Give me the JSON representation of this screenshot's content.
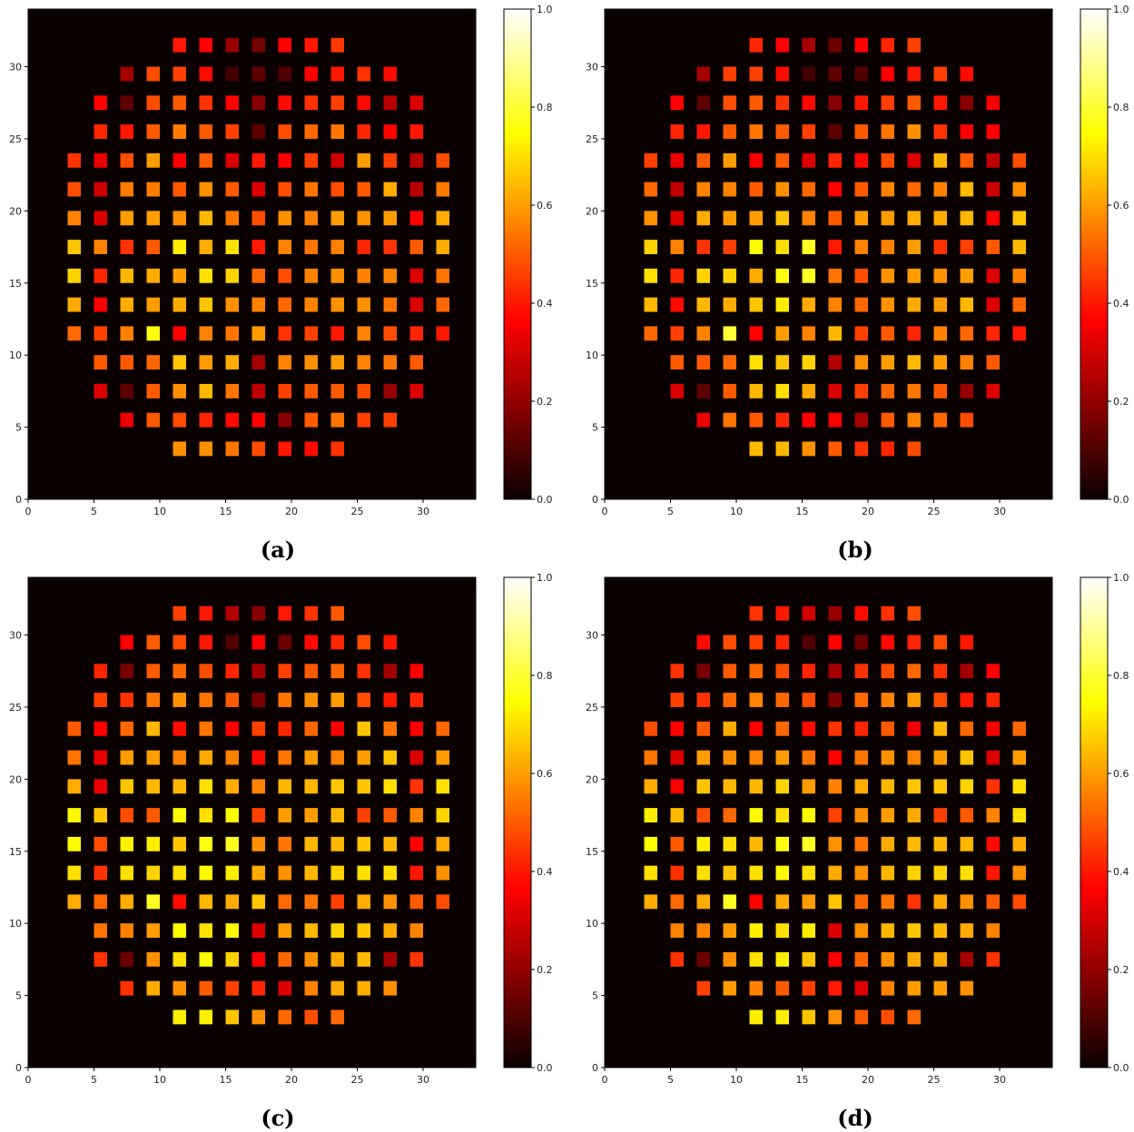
{
  "chart_data": [
    {
      "caption": "(a)",
      "type": "heatmap",
      "colormap": "hot",
      "x_range": [
        0,
        34
      ],
      "y_range": [
        0,
        34
      ],
      "x_ticks": [
        0,
        5,
        10,
        15,
        20,
        25,
        30
      ],
      "y_ticks": [
        0,
        5,
        10,
        15,
        20,
        25,
        30
      ],
      "colorbar": {
        "range": [
          0,
          1
        ],
        "ticks": [
          "0.0",
          "0.2",
          "0.4",
          "0.6",
          "0.8",
          "1.0"
        ]
      },
      "cell_x": [
        3.5,
        5.5,
        7.5,
        9.5,
        11.5,
        13.5,
        15.5,
        17.5,
        19.5,
        21.5,
        23.5,
        25.5,
        27.5,
        29.5,
        31.5
      ],
      "cell_y": [
        31.5,
        29.5,
        27.5,
        25.5,
        23.5,
        21.5,
        19.5,
        17.5,
        15.5,
        13.5,
        11.5,
        9.5,
        7.5,
        5.5,
        3.5
      ],
      "grid": [
        [
          null,
          null,
          null,
          null,
          0.4,
          0.36,
          0.2,
          0.15,
          0.36,
          0.4,
          0.45,
          null,
          null,
          null,
          null
        ],
        [
          null,
          null,
          0.22,
          0.48,
          0.46,
          0.38,
          0.08,
          0.12,
          0.1,
          0.36,
          0.4,
          0.44,
          0.38,
          null,
          null
        ],
        [
          null,
          0.36,
          0.12,
          0.48,
          0.5,
          0.44,
          0.36,
          0.18,
          0.38,
          0.44,
          0.46,
          0.38,
          0.25,
          0.3,
          null
        ],
        [
          null,
          0.42,
          0.4,
          0.5,
          0.55,
          0.5,
          0.46,
          0.12,
          0.48,
          0.52,
          0.54,
          0.42,
          0.36,
          0.4,
          null
        ],
        [
          0.44,
          0.32,
          0.48,
          0.6,
          0.35,
          0.5,
          0.3,
          0.4,
          0.36,
          0.46,
          0.28,
          0.6,
          0.46,
          0.25,
          0.48
        ],
        [
          0.48,
          0.28,
          0.55,
          0.55,
          0.5,
          0.58,
          0.5,
          0.3,
          0.48,
          0.54,
          0.48,
          0.5,
          0.62,
          0.25,
          0.55
        ],
        [
          0.56,
          0.3,
          0.6,
          0.6,
          0.58,
          0.64,
          0.54,
          0.48,
          0.58,
          0.56,
          0.6,
          0.58,
          0.6,
          0.36,
          0.62
        ],
        [
          0.66,
          0.56,
          0.44,
          0.5,
          0.72,
          0.62,
          0.7,
          0.4,
          0.56,
          0.54,
          0.56,
          0.42,
          0.44,
          0.5,
          0.62
        ],
        [
          0.68,
          0.42,
          0.64,
          0.62,
          0.6,
          0.7,
          0.68,
          0.52,
          0.48,
          0.56,
          0.58,
          0.56,
          0.56,
          0.3,
          0.54
        ],
        [
          0.62,
          0.36,
          0.62,
          0.6,
          0.62,
          0.66,
          0.58,
          0.56,
          0.52,
          0.56,
          0.58,
          0.58,
          0.54,
          0.3,
          0.52
        ],
        [
          0.52,
          0.46,
          0.56,
          0.76,
          0.36,
          0.56,
          0.54,
          0.6,
          0.44,
          0.46,
          0.4,
          0.56,
          0.48,
          0.42,
          0.4
        ],
        [
          null,
          0.5,
          0.5,
          0.52,
          0.66,
          0.6,
          0.62,
          0.22,
          0.56,
          0.58,
          0.6,
          0.56,
          0.54,
          0.5,
          null
        ],
        [
          null,
          0.3,
          0.12,
          0.5,
          0.58,
          0.64,
          0.54,
          0.26,
          0.46,
          0.5,
          0.5,
          0.48,
          0.2,
          0.3,
          null
        ],
        [
          null,
          null,
          0.32,
          0.5,
          0.48,
          0.42,
          0.38,
          0.36,
          0.18,
          0.5,
          0.54,
          0.46,
          0.46,
          null,
          null
        ],
        [
          null,
          null,
          null,
          null,
          0.58,
          0.58,
          0.54,
          0.48,
          0.4,
          0.38,
          0.44,
          null,
          null,
          null,
          null
        ]
      ]
    },
    {
      "caption": "(b)",
      "type": "heatmap",
      "colormap": "hot",
      "x_range": [
        0,
        34
      ],
      "y_range": [
        0,
        34
      ],
      "x_ticks": [
        0,
        5,
        10,
        15,
        20,
        25,
        30
      ],
      "y_ticks": [
        0,
        5,
        10,
        15,
        20,
        25,
        30
      ],
      "colorbar": {
        "range": [
          0,
          1
        ],
        "ticks": [
          "0.0",
          "0.2",
          "0.4",
          "0.6",
          "0.8",
          "1.0"
        ]
      },
      "cell_x": [
        3.5,
        5.5,
        7.5,
        9.5,
        11.5,
        13.5,
        15.5,
        17.5,
        19.5,
        21.5,
        23.5,
        25.5,
        27.5,
        29.5,
        31.5
      ],
      "cell_y": [
        31.5,
        29.5,
        27.5,
        25.5,
        23.5,
        21.5,
        19.5,
        17.5,
        15.5,
        13.5,
        11.5,
        9.5,
        7.5,
        5.5,
        3.5
      ],
      "grid": [
        [
          null,
          null,
          null,
          null,
          0.42,
          0.36,
          0.22,
          0.14,
          0.36,
          0.42,
          0.46,
          null,
          null,
          null,
          null
        ],
        [
          null,
          null,
          0.22,
          0.46,
          0.46,
          0.38,
          0.08,
          0.12,
          0.1,
          0.36,
          0.4,
          0.46,
          0.38,
          null,
          null
        ],
        [
          null,
          0.36,
          0.12,
          0.48,
          0.5,
          0.44,
          0.38,
          0.18,
          0.4,
          0.46,
          0.5,
          0.4,
          0.18,
          0.34,
          null
        ],
        [
          null,
          0.42,
          0.4,
          0.5,
          0.54,
          0.5,
          0.46,
          0.12,
          0.5,
          0.54,
          0.58,
          0.44,
          0.36,
          0.36,
          null
        ],
        [
          0.46,
          0.32,
          0.5,
          0.6,
          0.34,
          0.5,
          0.3,
          0.42,
          0.38,
          0.48,
          0.3,
          0.64,
          0.5,
          0.26,
          0.48
        ],
        [
          0.52,
          0.26,
          0.56,
          0.56,
          0.5,
          0.58,
          0.52,
          0.36,
          0.5,
          0.56,
          0.52,
          0.56,
          0.64,
          0.28,
          0.58
        ],
        [
          0.58,
          0.3,
          0.62,
          0.6,
          0.6,
          0.66,
          0.56,
          0.5,
          0.6,
          0.6,
          0.62,
          0.62,
          0.64,
          0.36,
          0.66
        ],
        [
          0.68,
          0.56,
          0.44,
          0.46,
          0.74,
          0.7,
          0.78,
          0.4,
          0.56,
          0.56,
          0.6,
          0.44,
          0.46,
          0.5,
          0.64
        ],
        [
          0.7,
          0.42,
          0.68,
          0.68,
          0.62,
          0.76,
          0.78,
          0.54,
          0.48,
          0.58,
          0.6,
          0.58,
          0.6,
          0.3,
          0.56
        ],
        [
          0.64,
          0.38,
          0.64,
          0.62,
          0.66,
          0.72,
          0.62,
          0.56,
          0.52,
          0.58,
          0.62,
          0.6,
          0.64,
          0.3,
          0.52
        ],
        [
          0.52,
          0.46,
          0.56,
          0.8,
          0.36,
          0.6,
          0.56,
          0.64,
          0.46,
          0.5,
          0.42,
          0.56,
          0.52,
          0.42,
          0.4
        ],
        [
          null,
          0.5,
          0.5,
          0.52,
          0.7,
          0.66,
          0.68,
          0.24,
          0.58,
          0.6,
          0.64,
          0.6,
          0.56,
          0.5,
          null
        ],
        [
          null,
          0.3,
          0.12,
          0.5,
          0.64,
          0.7,
          0.62,
          0.3,
          0.46,
          0.52,
          0.54,
          0.5,
          0.2,
          0.3,
          null
        ],
        [
          null,
          null,
          0.32,
          0.54,
          0.5,
          0.42,
          0.36,
          0.34,
          0.22,
          0.5,
          0.56,
          0.52,
          0.48,
          null,
          null
        ],
        [
          null,
          null,
          null,
          null,
          0.64,
          0.64,
          0.58,
          0.5,
          0.44,
          0.42,
          0.48,
          null,
          null,
          null,
          null
        ]
      ]
    },
    {
      "caption": "(c)",
      "type": "heatmap",
      "colormap": "hot",
      "x_range": [
        0,
        34
      ],
      "y_range": [
        0,
        34
      ],
      "x_ticks": [
        0,
        5,
        10,
        15,
        20,
        25,
        30
      ],
      "y_ticks": [
        0,
        5,
        10,
        15,
        20,
        25,
        30
      ],
      "colorbar": {
        "range": [
          0,
          1
        ],
        "ticks": [
          "0.0",
          "0.2",
          "0.4",
          "0.6",
          "0.8",
          "1.0"
        ]
      },
      "cell_x": [
        3.5,
        5.5,
        7.5,
        9.5,
        11.5,
        13.5,
        15.5,
        17.5,
        19.5,
        21.5,
        23.5,
        25.5,
        27.5,
        29.5,
        31.5
      ],
      "cell_y": [
        31.5,
        29.5,
        27.5,
        25.5,
        23.5,
        21.5,
        19.5,
        17.5,
        15.5,
        13.5,
        11.5,
        9.5,
        7.5,
        5.5,
        3.5
      ],
      "grid": [
        [
          null,
          null,
          null,
          null,
          0.46,
          0.4,
          0.24,
          0.18,
          0.4,
          0.44,
          0.5,
          null,
          null,
          null,
          null
        ],
        [
          null,
          null,
          0.36,
          0.5,
          0.48,
          0.4,
          0.1,
          0.36,
          0.14,
          0.38,
          0.42,
          0.48,
          0.4,
          null,
          null
        ],
        [
          null,
          0.42,
          0.16,
          0.5,
          0.52,
          0.48,
          0.42,
          0.22,
          0.46,
          0.5,
          0.52,
          0.44,
          0.22,
          0.36,
          null
        ],
        [
          null,
          0.46,
          0.44,
          0.54,
          0.58,
          0.54,
          0.5,
          0.16,
          0.54,
          0.58,
          0.6,
          0.48,
          0.4,
          0.42,
          null
        ],
        [
          0.5,
          0.36,
          0.52,
          0.64,
          0.38,
          0.54,
          0.36,
          0.46,
          0.42,
          0.52,
          0.34,
          0.66,
          0.54,
          0.34,
          0.52
        ],
        [
          0.54,
          0.32,
          0.6,
          0.6,
          0.56,
          0.62,
          0.56,
          0.38,
          0.54,
          0.6,
          0.56,
          0.6,
          0.66,
          0.3,
          0.6
        ],
        [
          0.62,
          0.32,
          0.66,
          0.64,
          0.64,
          0.7,
          0.62,
          0.56,
          0.64,
          0.64,
          0.66,
          0.66,
          0.7,
          0.44,
          0.7
        ],
        [
          0.74,
          0.66,
          0.48,
          0.5,
          0.74,
          0.7,
          0.74,
          0.46,
          0.6,
          0.6,
          0.64,
          0.46,
          0.5,
          0.56,
          0.68
        ],
        [
          0.74,
          0.48,
          0.72,
          0.72,
          0.66,
          0.76,
          0.78,
          0.58,
          0.54,
          0.64,
          0.64,
          0.66,
          0.64,
          0.36,
          0.62
        ],
        [
          0.7,
          0.44,
          0.7,
          0.68,
          0.7,
          0.74,
          0.72,
          0.62,
          0.58,
          0.64,
          0.68,
          0.7,
          0.7,
          0.4,
          0.58
        ],
        [
          0.62,
          0.52,
          0.62,
          0.78,
          0.38,
          0.64,
          0.62,
          0.66,
          0.52,
          0.54,
          0.46,
          0.62,
          0.58,
          0.5,
          0.48
        ],
        [
          null,
          0.54,
          0.56,
          0.6,
          0.74,
          0.7,
          0.74,
          0.3,
          0.6,
          0.64,
          0.68,
          0.66,
          0.62,
          0.56,
          null
        ],
        [
          null,
          0.44,
          0.14,
          0.58,
          0.7,
          0.74,
          0.68,
          0.36,
          0.52,
          0.58,
          0.62,
          0.64,
          0.22,
          0.44,
          null
        ],
        [
          null,
          null,
          0.44,
          0.62,
          0.58,
          0.5,
          0.46,
          0.42,
          0.3,
          0.56,
          0.62,
          0.62,
          0.58,
          null,
          null
        ],
        [
          null,
          null,
          null,
          null,
          0.72,
          0.72,
          0.66,
          0.58,
          0.52,
          0.48,
          0.52,
          null,
          null,
          null,
          null
        ]
      ]
    },
    {
      "caption": "(d)",
      "type": "heatmap",
      "colormap": "hot",
      "x_range": [
        0,
        34
      ],
      "y_range": [
        0,
        34
      ],
      "x_ticks": [
        0,
        5,
        10,
        15,
        20,
        25,
        30
      ],
      "y_ticks": [
        0,
        5,
        10,
        15,
        20,
        25,
        30
      ],
      "colorbar": {
        "range": [
          0,
          1
        ],
        "ticks": [
          "0.0",
          "0.2",
          "0.4",
          "0.6",
          "0.8",
          "1.0"
        ]
      },
      "cell_x": [
        3.5,
        5.5,
        7.5,
        9.5,
        11.5,
        13.5,
        15.5,
        17.5,
        19.5,
        21.5,
        23.5,
        25.5,
        27.5,
        29.5,
        31.5
      ],
      "cell_y": [
        31.5,
        29.5,
        27.5,
        25.5,
        23.5,
        21.5,
        19.5,
        17.5,
        15.5,
        13.5,
        11.5,
        9.5,
        7.5,
        5.5,
        3.5
      ],
      "grid": [
        [
          null,
          null,
          null,
          null,
          0.44,
          0.4,
          0.28,
          0.2,
          0.38,
          0.44,
          0.48,
          null,
          null,
          null,
          null
        ],
        [
          null,
          null,
          0.38,
          0.48,
          0.46,
          0.42,
          0.1,
          0.36,
          0.14,
          0.38,
          0.42,
          0.48,
          0.4,
          null,
          null
        ],
        [
          null,
          0.44,
          0.16,
          0.5,
          0.52,
          0.48,
          0.42,
          0.22,
          0.44,
          0.48,
          0.52,
          0.44,
          0.22,
          0.36,
          null
        ],
        [
          null,
          0.46,
          0.44,
          0.52,
          0.56,
          0.52,
          0.48,
          0.16,
          0.52,
          0.56,
          0.6,
          0.48,
          0.4,
          0.42,
          null
        ],
        [
          0.48,
          0.36,
          0.5,
          0.62,
          0.36,
          0.52,
          0.38,
          0.44,
          0.42,
          0.5,
          0.32,
          0.64,
          0.52,
          0.34,
          0.52
        ],
        [
          0.54,
          0.3,
          0.6,
          0.58,
          0.56,
          0.6,
          0.54,
          0.36,
          0.54,
          0.58,
          0.56,
          0.6,
          0.66,
          0.3,
          0.6
        ],
        [
          0.62,
          0.34,
          0.66,
          0.64,
          0.64,
          0.68,
          0.6,
          0.56,
          0.62,
          0.64,
          0.66,
          0.66,
          0.68,
          0.44,
          0.7
        ],
        [
          0.72,
          0.64,
          0.48,
          0.52,
          0.74,
          0.7,
          0.74,
          0.46,
          0.58,
          0.6,
          0.62,
          0.46,
          0.5,
          0.56,
          0.7
        ],
        [
          0.74,
          0.5,
          0.72,
          0.7,
          0.64,
          0.76,
          0.78,
          0.58,
          0.54,
          0.62,
          0.64,
          0.64,
          0.64,
          0.38,
          0.62
        ],
        [
          0.7,
          0.44,
          0.7,
          0.66,
          0.7,
          0.74,
          0.7,
          0.62,
          0.58,
          0.64,
          0.68,
          0.68,
          0.7,
          0.4,
          0.58
        ],
        [
          0.62,
          0.52,
          0.62,
          0.78,
          0.36,
          0.62,
          0.6,
          0.66,
          0.52,
          0.54,
          0.44,
          0.62,
          0.58,
          0.5,
          0.48
        ],
        [
          null,
          0.56,
          0.56,
          0.6,
          0.72,
          0.7,
          0.72,
          0.3,
          0.58,
          0.64,
          0.66,
          0.64,
          0.62,
          0.56,
          null
        ],
        [
          null,
          0.44,
          0.14,
          0.58,
          0.7,
          0.72,
          0.66,
          0.36,
          0.52,
          0.58,
          0.62,
          0.62,
          0.22,
          0.44,
          null
        ],
        [
          null,
          null,
          0.46,
          0.6,
          0.56,
          0.5,
          0.46,
          0.4,
          0.3,
          0.56,
          0.6,
          0.6,
          0.58,
          null,
          null
        ],
        [
          null,
          null,
          null,
          null,
          0.72,
          0.72,
          0.66,
          0.58,
          0.5,
          0.48,
          0.52,
          null,
          null,
          null,
          null
        ]
      ]
    }
  ]
}
